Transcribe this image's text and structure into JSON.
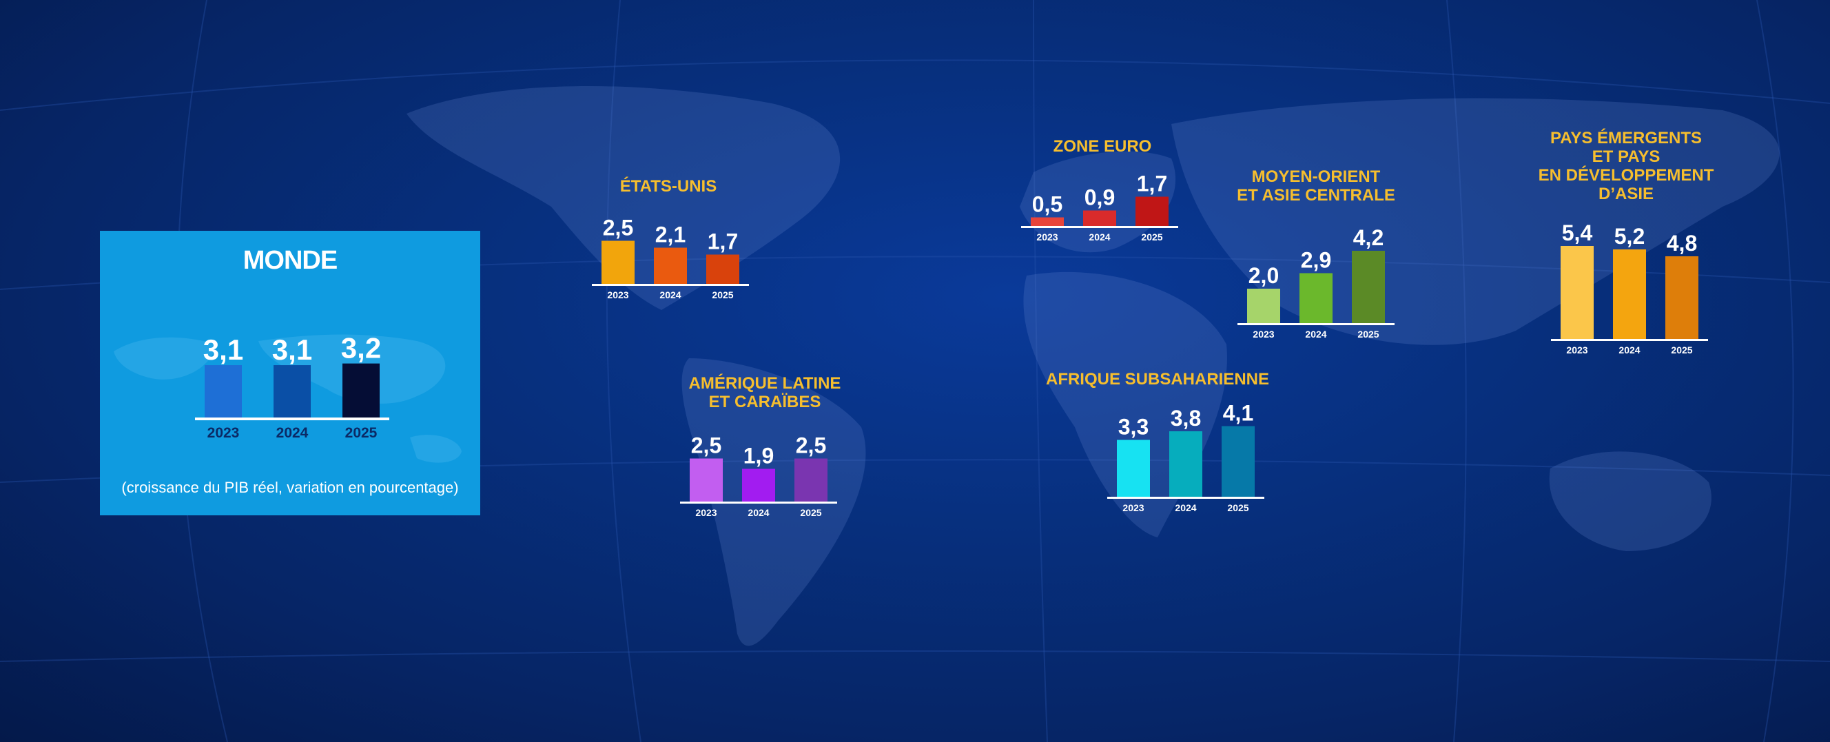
{
  "colors": {
    "title": "#f6be2e",
    "world_box": "#0f9be0"
  },
  "world": {
    "title": "MONDE",
    "note": "(croissance du PIB réel, variation en pourcentage)"
  },
  "chart_data": [
    {
      "type": "bar",
      "title": "MONDE",
      "categories": [
        "2023",
        "2024",
        "2025"
      ],
      "values": [
        3.1,
        3.1,
        3.2
      ],
      "labels": [
        "3,1",
        "3,1",
        "3,2"
      ],
      "colors": [
        "#1e6fd6",
        "#0a4fa6",
        "#050d35"
      ]
    },
    {
      "type": "bar",
      "title": "ÉTATS-UNIS",
      "categories": [
        "2023",
        "2024",
        "2025"
      ],
      "values": [
        2.5,
        2.1,
        1.7
      ],
      "labels": [
        "2,5",
        "2,1",
        "1,7"
      ],
      "colors": [
        "#f2a50c",
        "#ea5a0f",
        "#d9420c"
      ]
    },
    {
      "type": "bar",
      "title": "ZONE EURO",
      "categories": [
        "2023",
        "2024",
        "2025"
      ],
      "values": [
        0.5,
        0.9,
        1.7
      ],
      "labels": [
        "0,5",
        "0,9",
        "1,7"
      ],
      "colors": [
        "#e8443a",
        "#d92b2b",
        "#c01616"
      ]
    },
    {
      "type": "bar",
      "title": "MOYEN-ORIENT\nET ASIE CENTRALE",
      "categories": [
        "2023",
        "2024",
        "2025"
      ],
      "values": [
        2.0,
        2.9,
        4.2
      ],
      "labels": [
        "2,0",
        "2,9",
        "4,2"
      ],
      "colors": [
        "#a6d46a",
        "#6bb82c",
        "#5b8a26"
      ]
    },
    {
      "type": "bar",
      "title": "PAYS ÉMERGENTS\nET PAYS\nEN DÉVELOPPEMENT\nD’ASIE",
      "categories": [
        "2023",
        "2024",
        "2025"
      ],
      "values": [
        5.4,
        5.2,
        4.8
      ],
      "labels": [
        "5,4",
        "5,2",
        "4,8"
      ],
      "colors": [
        "#fbc64a",
        "#f4a50f",
        "#de7e0a"
      ]
    },
    {
      "type": "bar",
      "title": "AMÉRIQUE LATINE\nET CARAÏBES",
      "categories": [
        "2023",
        "2024",
        "2025"
      ],
      "values": [
        2.5,
        1.9,
        2.5
      ],
      "labels": [
        "2,5",
        "1,9",
        "2,5"
      ],
      "colors": [
        "#c25ef0",
        "#a21cf0",
        "#7a35b0"
      ]
    },
    {
      "type": "bar",
      "title": "AFRIQUE SUBSAHARIENNE",
      "categories": [
        "2023",
        "2024",
        "2025"
      ],
      "values": [
        3.3,
        3.8,
        4.1
      ],
      "labels": [
        "3,3",
        "3,8",
        "4,1"
      ],
      "colors": [
        "#17e2f2",
        "#06adbd",
        "#0679a8"
      ]
    }
  ]
}
